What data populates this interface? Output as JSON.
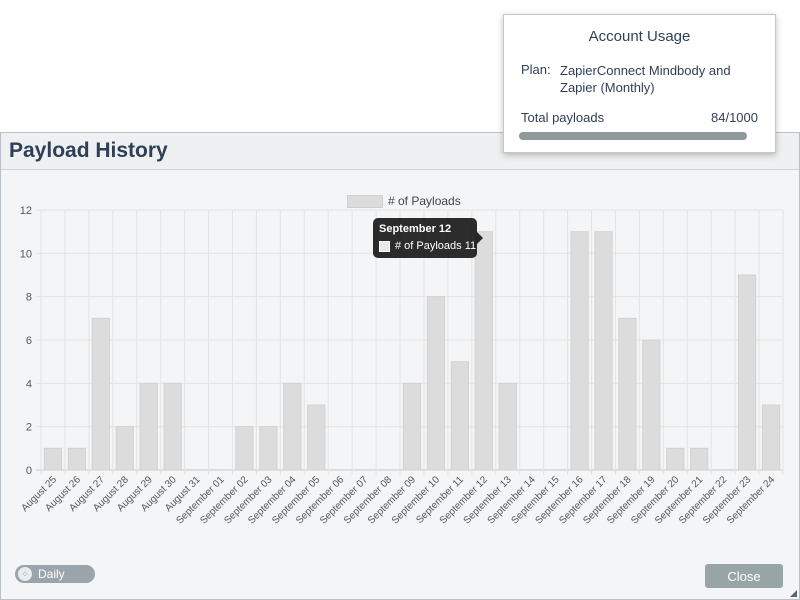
{
  "dialog": {
    "title": "Payload History",
    "daily_label": "Daily",
    "close_label": "Close"
  },
  "tooltip": {
    "title": "September 12",
    "label": "# of Payloads 11"
  },
  "usage": {
    "title": "Account Usage",
    "plan_label": "Plan:",
    "plan_value": "ZapierConnect Mindbody and Zapier (Monthly)",
    "payloads_label": "Total payloads",
    "payloads_value": "84/1000",
    "payloads_used": 84,
    "payloads_limit": 1000,
    "bar_fill_display": 1.0
  },
  "chart_data": {
    "type": "bar",
    "categories": [
      "August 25",
      "August 26",
      "August 27",
      "August 28",
      "August 29",
      "August 30",
      "August 31",
      "September 01",
      "September 02",
      "September 03",
      "September 04",
      "September 05",
      "September 06",
      "September 07",
      "September 08",
      "September 09",
      "September 10",
      "September 11",
      "September 12",
      "September 13",
      "September 14",
      "September 15",
      "September 16",
      "September 17",
      "September 18",
      "September 19",
      "September 20",
      "September 21",
      "September 22",
      "September 23",
      "September 24"
    ],
    "series": [
      {
        "name": "# of Payloads",
        "values": [
          1,
          1,
          7,
          2,
          4,
          4,
          0,
          0,
          2,
          2,
          4,
          3,
          0,
          0,
          0,
          4,
          8,
          5,
          11,
          4,
          0,
          0,
          11,
          11,
          7,
          6,
          1,
          1,
          0,
          9,
          3
        ]
      }
    ],
    "yticks": [
      "0",
      "2",
      "4",
      "6",
      "8",
      "10",
      "12"
    ],
    "ylim": [
      0,
      12
    ],
    "grid": true,
    "legend": "top-center",
    "bar_color": "#dcdcdc"
  }
}
